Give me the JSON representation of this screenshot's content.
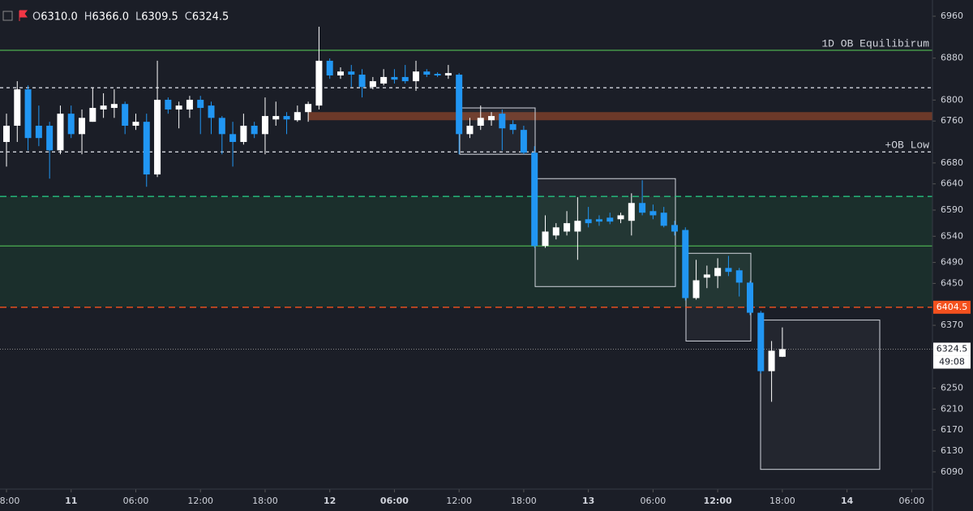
{
  "chart_data": {
    "type": "candlestick",
    "header": {
      "labels": [
        "O",
        "H",
        "L",
        "C"
      ],
      "values": [
        "6310.0",
        "6366.0",
        "6309.5",
        "6324.5"
      ]
    },
    "up_color": "#ffffff",
    "down_color": "#2196f3",
    "open": [
      6720,
      6751,
      6820.5,
      6751,
      6751,
      6704,
      6774,
      6735,
      6758.5,
      6782,
      6785,
      6792.5,
      6751,
      6758.5,
      6658,
      6800.5,
      6782,
      6782,
      6800.5,
      6789.5,
      6766,
      6735,
      6720,
      6751,
      6735,
      6763,
      6769.5,
      6761.5,
      6777,
      6789.5,
      6875,
      6847,
      6854.5,
      6848.5,
      6825,
      6831.5,
      6844,
      6844,
      6836,
      6854.5,
      6850,
      6847,
      6848.5,
      6735,
      6751,
      6761.5,
      6774,
      6754,
      6743,
      6699.5,
      6521.5,
      6541.5,
      6549,
      6549,
      6572.5,
      6572.5,
      6575.5,
      6572.5,
      6569.5,
      6603.5,
      6588,
      6585,
      6561.5,
      6552,
      6422,
      6461,
      6464,
      6479.5,
      6475,
      6451.5,
      6394,
      6282.5,
      6310
    ],
    "high": [
      6774,
      6836,
      6828,
      6789.5,
      6758.5,
      6789.5,
      6789.5,
      6782,
      6823.5,
      6813,
      6820.5,
      6797,
      6774,
      6774,
      6875,
      6805,
      6797,
      6808,
      6808,
      6797,
      6769.5,
      6758.5,
      6774,
      6758.5,
      6805,
      6797,
      6777,
      6789.5,
      6797,
      6940,
      6879.5,
      6862.5,
      6867,
      6859,
      6844,
      6859,
      6859,
      6867,
      6875,
      6859,
      6853,
      6867,
      6851.5,
      6766,
      6789.5,
      6777,
      6782,
      6761.5,
      6751,
      6712,
      6580,
      6565,
      6588,
      6614.5,
      6596,
      6580,
      6585,
      6585,
      6622,
      6647,
      6600.5,
      6596,
      6569.5,
      6557,
      6495,
      6484,
      6498,
      6502.5,
      6479.5,
      6454.5,
      6397.5,
      6340,
      6366
    ],
    "low": [
      6673,
      6720,
      6704,
      6712,
      6650,
      6696.5,
      6727.5,
      6696.5,
      6758.5,
      6766,
      6766,
      6735,
      6743,
      6634.5,
      6653,
      6774,
      6746,
      6766,
      6735,
      6735,
      6696.5,
      6673,
      6715,
      6727.5,
      6696.5,
      6751,
      6735,
      6758.5,
      6758.5,
      6782,
      6840.5,
      6840.5,
      6825,
      6805,
      6820.5,
      6828,
      6831.5,
      6831.5,
      6817.5,
      6844,
      6844,
      6840.5,
      6696.5,
      6727.5,
      6743,
      6751,
      6704,
      6735,
      6696.5,
      6518,
      6518,
      6534,
      6541.5,
      6495,
      6557,
      6560,
      6563,
      6565,
      6541.5,
      6580,
      6572.5,
      6557,
      6541.5,
      6417.5,
      6419,
      6441,
      6441,
      6464,
      6425,
      6389.5,
      6278,
      6224,
      6309.5
    ],
    "close": [
      6751,
      6820.5,
      6727.5,
      6727.5,
      6704,
      6774,
      6735,
      6766,
      6785,
      6789.5,
      6792.5,
      6751,
      6758.5,
      6658,
      6800.5,
      6782,
      6789.5,
      6800.5,
      6785,
      6766,
      6735,
      6720,
      6751,
      6735,
      6769.5,
      6769.5,
      6763,
      6777,
      6792.5,
      6875,
      6847,
      6854.5,
      6848.5,
      6825,
      6836,
      6844,
      6839,
      6836,
      6854.5,
      6848.5,
      6847,
      6851.5,
      6735,
      6751,
      6766,
      6769.5,
      6746,
      6743,
      6699.5,
      6521.5,
      6549,
      6557,
      6565,
      6569.5,
      6565,
      6568,
      6568,
      6580,
      6603.5,
      6585,
      6580,
      6560,
      6549,
      6422,
      6456,
      6467,
      6479.5,
      6472,
      6451.5,
      6394,
      6282.5,
      6321.5,
      6324.5
    ],
    "ylim": [
      6062,
      6991
    ],
    "yticks": [
      6960,
      6880,
      6800,
      6760,
      6680,
      6640,
      6590,
      6540,
      6490,
      6450,
      6370,
      6250,
      6210,
      6170,
      6130,
      6090
    ],
    "xticks": [
      "8:00",
      "11",
      "06:00",
      "12:00",
      "18:00",
      "12",
      "06:00",
      "12:00",
      "18:00",
      "13",
      "06:00",
      "12:00",
      "18:00",
      "14",
      "06:00"
    ],
    "levels": [
      {
        "value": 6895,
        "label": "1D OB Equilibirum",
        "color": "#4caf50",
        "style": "solid"
      },
      {
        "value": 6823.5,
        "color": "#d1d4dc",
        "style": "dashed"
      },
      {
        "value": 6701,
        "label": "+OB Low",
        "color": "#d1d4dc",
        "style": "dashed"
      },
      {
        "value": 6616,
        "color": "#26c281",
        "style": "dashed"
      },
      {
        "value": 6521.5,
        "color": "#4caf50",
        "style": "solid"
      },
      {
        "value": 6404.5,
        "color": "#f4511e",
        "style": "dashed",
        "price_tag": true
      }
    ],
    "zones": [
      {
        "top": 6777,
        "bottom": 6761.5,
        "color": "#7a3e2a"
      },
      {
        "top": 6616,
        "bottom": 6404.5,
        "color": "#1d3a30"
      }
    ],
    "boxes": [
      {
        "top": 6785,
        "bottom": 6696.5
      },
      {
        "top": 6650,
        "bottom": 6444
      },
      {
        "top": 6507.5,
        "bottom": 6340
      },
      {
        "top": 6380,
        "bottom": 6095
      }
    ],
    "countdown": "49:08"
  }
}
